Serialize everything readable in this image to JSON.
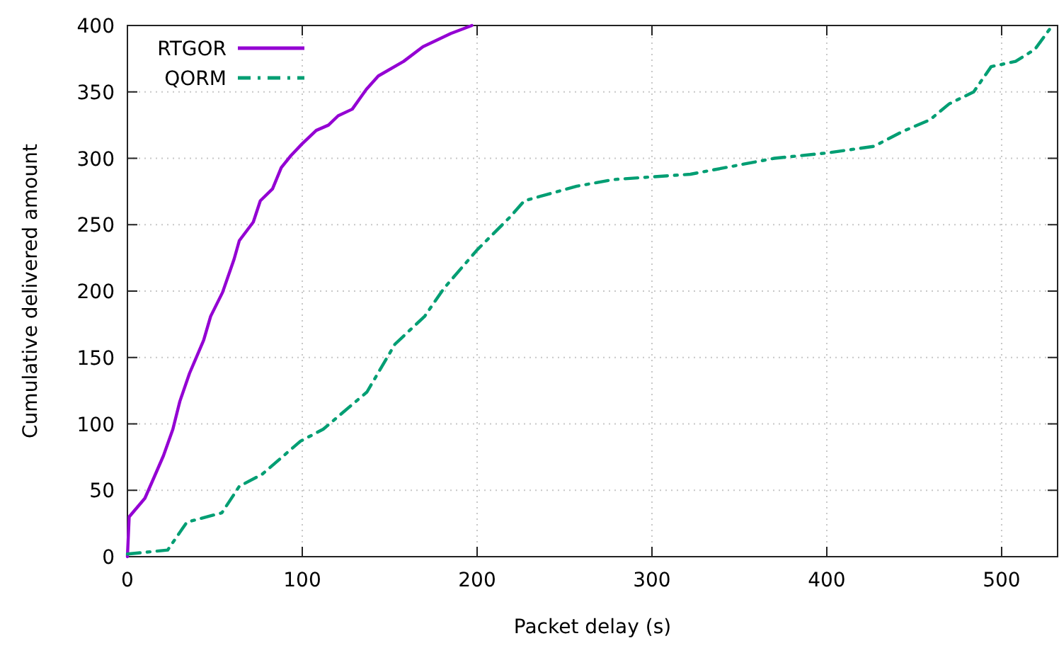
{
  "chart_data": {
    "type": "line",
    "xlabel": "Packet delay (s)",
    "ylabel": "Cumulative delivered amount",
    "xlim": [
      0,
      532
    ],
    "xticks": [
      0,
      100,
      200,
      300,
      400,
      500
    ],
    "ylim": [
      0,
      400
    ],
    "yticks": [
      0,
      50,
      100,
      150,
      200,
      250,
      300,
      350,
      400
    ],
    "grid": true,
    "legend": "top left",
    "marker": "none",
    "series": [
      {
        "name": "RTGOR",
        "color": "#9400d3",
        "line_style": "solid",
        "x": [
          0,
          1,
          10,
          14,
          20.6,
          26,
          30,
          35.5,
          43.6,
          47.6,
          54.4,
          61,
          64,
          72,
          76,
          83,
          88,
          93.5,
          100,
          108,
          115,
          120.5,
          128.6,
          136.7,
          143.5,
          158,
          169,
          185,
          197
        ],
        "values": [
          0,
          30,
          44,
          56,
          76,
          96,
          117,
          138,
          163,
          181,
          199,
          224,
          238,
          252,
          268,
          277,
          293,
          302,
          311,
          321,
          325,
          332,
          337,
          352,
          362,
          373,
          384,
          394,
          400
        ]
      },
      {
        "name": "QORM",
        "color": "#009e73",
        "line_style": "dashed",
        "x": [
          0,
          23,
          34,
          54,
          64,
          77,
          99,
          112,
          137,
          153,
          170,
          181,
          200,
          219,
          227,
          257,
          278,
          322,
          370,
          400,
          427,
          443,
          459,
          470,
          484,
          494,
          508,
          519,
          529
        ],
        "values": [
          2,
          5,
          26,
          33,
          53,
          62,
          87,
          96,
          124,
          160,
          181,
          202,
          231,
          256,
          268,
          279,
          284,
          288,
          300,
          304,
          309,
          320,
          329,
          341,
          350,
          369,
          373,
          382,
          400
        ]
      }
    ]
  }
}
